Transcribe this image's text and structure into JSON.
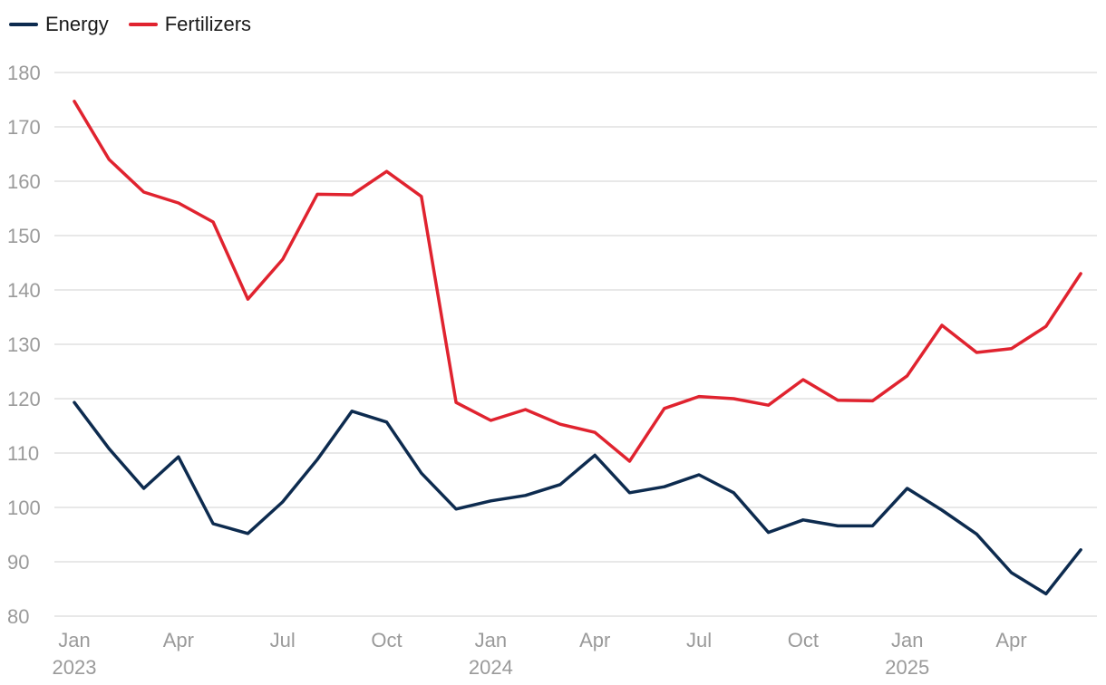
{
  "chart_data": {
    "type": "line",
    "title": "",
    "xlabel": "",
    "ylabel": "",
    "ylim": [
      80,
      180
    ],
    "y_ticks": [
      80,
      90,
      100,
      110,
      120,
      130,
      140,
      150,
      160,
      170,
      180
    ],
    "grid": true,
    "legend_position": "top-left",
    "x_ticks": [
      {
        "index": 0,
        "label": "Jan",
        "year": "2023"
      },
      {
        "index": 3,
        "label": "Apr",
        "year": ""
      },
      {
        "index": 6,
        "label": "Jul",
        "year": ""
      },
      {
        "index": 9,
        "label": "Oct",
        "year": ""
      },
      {
        "index": 12,
        "label": "Jan",
        "year": "2024"
      },
      {
        "index": 15,
        "label": "Apr",
        "year": ""
      },
      {
        "index": 18,
        "label": "Jul",
        "year": ""
      },
      {
        "index": 21,
        "label": "Oct",
        "year": ""
      },
      {
        "index": 24,
        "label": "Jan",
        "year": "2025"
      },
      {
        "index": 27,
        "label": "Apr",
        "year": ""
      }
    ],
    "x": [
      "2023-01",
      "2023-02",
      "2023-03",
      "2023-04",
      "2023-05",
      "2023-06",
      "2023-07",
      "2023-08",
      "2023-09",
      "2023-10",
      "2023-11",
      "2023-12",
      "2024-01",
      "2024-02",
      "2024-03",
      "2024-04",
      "2024-05",
      "2024-06",
      "2024-07",
      "2024-08",
      "2024-09",
      "2024-10",
      "2024-11",
      "2024-12",
      "2025-01",
      "2025-02",
      "2025-03",
      "2025-04",
      "2025-05",
      "2025-06"
    ],
    "series": [
      {
        "name": "Energy",
        "color": "#0d2b4f",
        "values": [
          119.3,
          110.8,
          103.5,
          109.3,
          97.0,
          95.2,
          101.0,
          108.8,
          117.7,
          115.7,
          106.3,
          99.7,
          101.2,
          102.2,
          104.2,
          109.6,
          102.7,
          103.8,
          106.0,
          102.7,
          95.4,
          97.7,
          96.6,
          96.6,
          103.5,
          99.5,
          95.1,
          88.0,
          84.1,
          92.2
        ]
      },
      {
        "name": "Fertilizers",
        "color": "#e0232f",
        "values": [
          174.7,
          164.0,
          158.0,
          156.0,
          152.5,
          138.3,
          145.6,
          157.6,
          157.5,
          161.8,
          157.2,
          119.3,
          116.0,
          118.0,
          115.3,
          113.8,
          108.5,
          118.2,
          120.4,
          120.0,
          118.8,
          123.5,
          119.7,
          119.6,
          124.2,
          133.5,
          128.5,
          129.2,
          133.3,
          143.0
        ]
      }
    ]
  }
}
